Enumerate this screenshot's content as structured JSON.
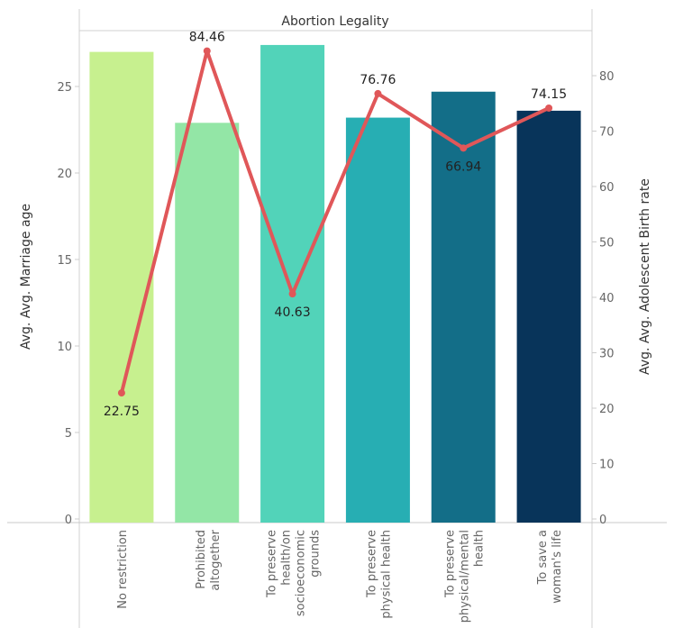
{
  "chart_data": {
    "type": "bar",
    "title": "Abortion Legality",
    "categories": [
      [
        "No restriction"
      ],
      [
        "Prohibited",
        "altogether"
      ],
      [
        "To preserve",
        "health/on",
        "socioeconomic",
        "grounds"
      ],
      [
        "To preserve",
        "physical health"
      ],
      [
        "To preserve",
        "physical/mental",
        "health"
      ],
      [
        "To save a",
        "woman's life"
      ]
    ],
    "series": [
      {
        "name": "Avg. Avg. Marriage age",
        "type": "bar",
        "axis": "left",
        "values": [
          27.0,
          22.9,
          27.4,
          23.2,
          24.7,
          23.6
        ],
        "colors": [
          "#c7f08f",
          "#93e6a6",
          "#52d3b9",
          "#27aeb3",
          "#136e88",
          "#08345a"
        ]
      },
      {
        "name": "Avg. Avg. Adolescent Birth rate",
        "type": "line",
        "axis": "right",
        "values": [
          22.75,
          84.46,
          40.63,
          76.76,
          66.94,
          74.15
        ],
        "labels": [
          "22.75",
          "84.46",
          "40.63",
          "76.76",
          "66.94",
          "74.15"
        ],
        "color": "#e05759"
      }
    ],
    "y_left": {
      "label": "Avg. Avg. Marriage age",
      "ticks": [
        0,
        5,
        10,
        15,
        20,
        25
      ],
      "range": [
        0,
        28
      ]
    },
    "y_right": {
      "label": "Avg. Avg. Adolescent Birth rate",
      "ticks": [
        0,
        10,
        20,
        30,
        40,
        50,
        60,
        70,
        80
      ],
      "range": [
        0,
        90
      ]
    },
    "grid": false
  }
}
